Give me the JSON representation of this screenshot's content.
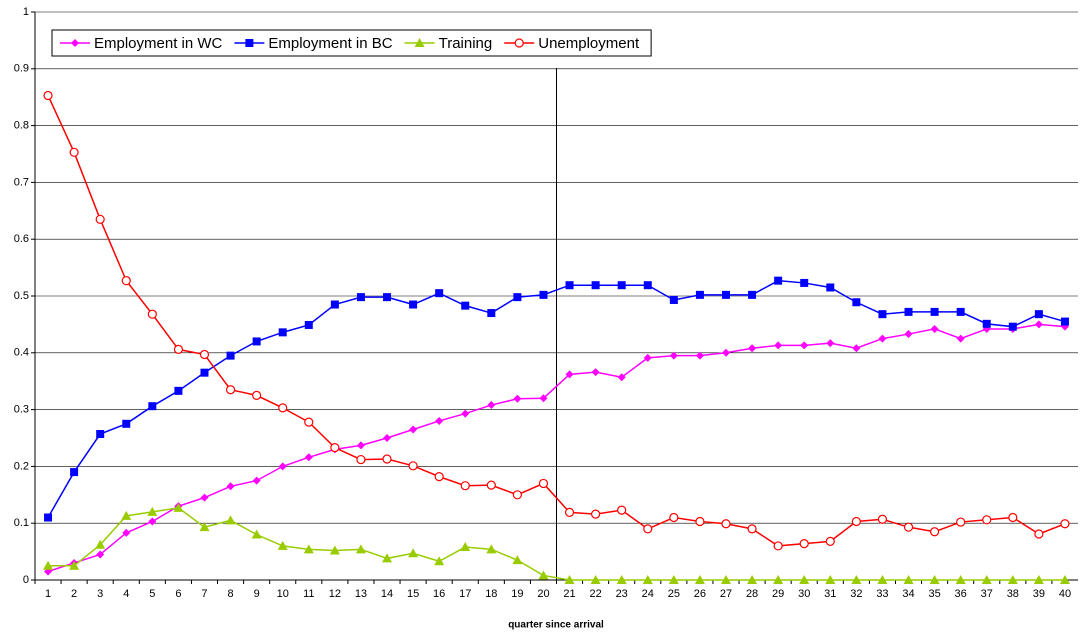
{
  "chart_data": {
    "type": "line",
    "xlabel": "quarter since arrival",
    "categories": [
      1,
      2,
      3,
      4,
      5,
      6,
      7,
      8,
      9,
      10,
      11,
      12,
      13,
      14,
      15,
      16,
      17,
      18,
      19,
      20,
      21,
      22,
      23,
      24,
      25,
      26,
      27,
      28,
      29,
      30,
      31,
      32,
      33,
      34,
      35,
      36,
      37,
      38,
      39,
      40
    ],
    "series": [
      {
        "name": "Employment in WC",
        "color": "#ff00ff",
        "marker": "diamond",
        "values": [
          0.015,
          0.03,
          0.045,
          0.083,
          0.103,
          0.13,
          0.145,
          0.165,
          0.175,
          0.2,
          0.216,
          0.23,
          0.237,
          0.25,
          0.265,
          0.28,
          0.293,
          0.308,
          0.319,
          0.32,
          0.362,
          0.366,
          0.357,
          0.391,
          0.395,
          0.395,
          0.4,
          0.408,
          0.413,
          0.413,
          0.417,
          0.408,
          0.425,
          0.433,
          0.442,
          0.425,
          0.442,
          0.442,
          0.45,
          0.446
        ]
      },
      {
        "name": "Employment in BC",
        "color": "#0000ff",
        "marker": "square",
        "values": [
          0.11,
          0.19,
          0.257,
          0.275,
          0.306,
          0.333,
          0.365,
          0.395,
          0.42,
          0.436,
          0.449,
          0.485,
          0.498,
          0.498,
          0.485,
          0.505,
          0.483,
          0.47,
          0.498,
          0.502,
          0.519,
          0.519,
          0.519,
          0.519,
          0.493,
          0.502,
          0.502,
          0.502,
          0.527,
          0.523,
          0.515,
          0.489,
          0.468,
          0.472,
          0.472,
          0.472,
          0.451,
          0.446,
          0.468,
          0.455
        ]
      },
      {
        "name": "Training",
        "color": "#99cc00",
        "marker": "triangle",
        "values": [
          0.025,
          0.025,
          0.062,
          0.113,
          0.12,
          0.127,
          0.093,
          0.105,
          0.08,
          0.06,
          0.054,
          0.052,
          0.054,
          0.038,
          0.047,
          0.033,
          0.058,
          0.054,
          0.035,
          0.008,
          0,
          0,
          0,
          0,
          0,
          0,
          0,
          0,
          0,
          0,
          0,
          0,
          0,
          0,
          0,
          0,
          0,
          0,
          0,
          0
        ]
      },
      {
        "name": "Unemployment",
        "color": "#ff0000",
        "marker": "circle",
        "values": [
          0.853,
          0.753,
          0.635,
          0.527,
          0.468,
          0.406,
          0.397,
          0.335,
          0.325,
          0.303,
          0.278,
          0.233,
          0.212,
          0.213,
          0.201,
          0.182,
          0.166,
          0.167,
          0.15,
          0.17,
          0.119,
          0.116,
          0.123,
          0.09,
          0.11,
          0.103,
          0.099,
          0.09,
          0.06,
          0.064,
          0.068,
          0.103,
          0.107,
          0.093,
          0.085,
          0.102,
          0.106,
          0.11,
          0.081,
          0.099
        ]
      }
    ],
    "ylim": [
      0,
      1
    ],
    "yticks": [
      0,
      0.1,
      0.2,
      0.3,
      0.4,
      0.5,
      0.6,
      0.7,
      0.8,
      0.9,
      1
    ],
    "grid": true,
    "legend": "top-left"
  }
}
